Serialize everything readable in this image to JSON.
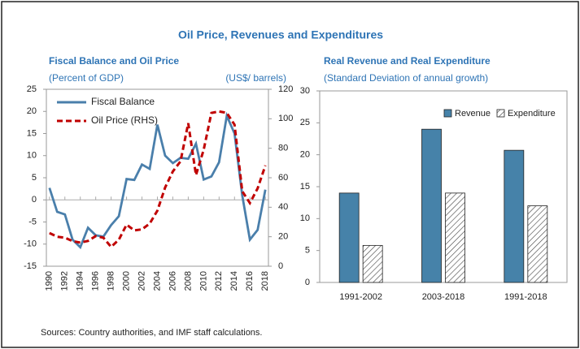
{
  "title": "Oil Price, Revenues and Expenditures",
  "source": "Sources: Country authorities, and IMF staff calculations.",
  "chart_data": [
    {
      "type": "line",
      "title": "Fiscal Balance and Oil Price",
      "subtitle": "(Percent of GDP)",
      "y2_label": "(US$/ barrels)",
      "x": [
        1990,
        1991,
        1992,
        1993,
        1994,
        1995,
        1996,
        1997,
        1998,
        1999,
        2000,
        2001,
        2002,
        2003,
        2004,
        2005,
        2006,
        2007,
        2008,
        2009,
        2010,
        2011,
        2012,
        2013,
        2014,
        2015,
        2016,
        2017,
        2018
      ],
      "xlim": [
        1989.6,
        2018.4
      ],
      "xticks": [
        1990,
        1992,
        1994,
        1996,
        1998,
        2000,
        2002,
        2004,
        2006,
        2008,
        2010,
        2012,
        2014,
        2016,
        2018
      ],
      "ylim": [
        -15,
        25
      ],
      "yticks": [
        -15,
        -10,
        -5,
        0,
        5,
        10,
        15,
        20,
        25
      ],
      "y2lim": [
        0,
        120
      ],
      "y2ticks": [
        0,
        20,
        40,
        60,
        80,
        100,
        120
      ],
      "legend": "upper left",
      "series": [
        {
          "name": "Fiscal Balance",
          "color": "#4a7fab",
          "style": "solid",
          "values": [
            2.7,
            -2.7,
            -3.3,
            -9,
            -10.7,
            -6.3,
            -8,
            -8.3,
            -5.7,
            -3.7,
            4.7,
            4.5,
            8,
            7,
            17,
            10,
            8.3,
            9.5,
            9.3,
            12.7,
            4.6,
            5.3,
            8.5,
            19,
            15,
            1,
            -9,
            -6.8,
            2.3
          ]
        },
        {
          "name": "Oil Price (RHS)",
          "color": "#c00000",
          "style": "dashed",
          "axis": "y2",
          "values": [
            22.5,
            20,
            19.3,
            17,
            16,
            17.2,
            20.4,
            19.3,
            13.1,
            18,
            28.2,
            24.3,
            25,
            28.9,
            37.7,
            53.4,
            64.3,
            71.1,
            97,
            61.8,
            79,
            104,
            105,
            104,
            96,
            50.8,
            42.8,
            52.8,
            68.3
          ]
        }
      ]
    },
    {
      "type": "bar",
      "title": "Real Revenue and Real Expenditure",
      "subtitle": "(Standard Deviation of annual growth)",
      "categories": [
        "1991-2002",
        "2003-2018",
        "1991-2018"
      ],
      "ylim": [
        0,
        30
      ],
      "yticks": [
        0,
        5,
        10,
        15,
        20,
        25,
        30
      ],
      "legend": "upper right",
      "series": [
        {
          "name": "Revenue",
          "color": "#4682a9",
          "values": [
            14,
            24,
            20.7
          ]
        },
        {
          "name": "Expenditure",
          "color": "#404040",
          "pattern": "hatch",
          "values": [
            5.8,
            14,
            12
          ]
        }
      ]
    }
  ]
}
